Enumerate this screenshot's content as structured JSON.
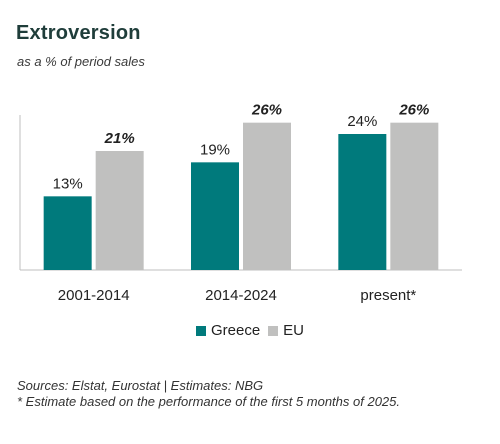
{
  "header": {
    "title": "Extroversion",
    "subtitle": "as a % of period sales"
  },
  "chart_data": {
    "type": "bar",
    "categories": [
      "2001-2014",
      "2014-2024",
      "present*"
    ],
    "series": [
      {
        "name": "Greece",
        "values": [
          13,
          19,
          24
        ],
        "labels": [
          "13%",
          "19%",
          "24%"
        ],
        "color": "#007a7c",
        "label_style": "normal"
      },
      {
        "name": "EU",
        "values": [
          21,
          26,
          26
        ],
        "labels": [
          "21%",
          "26%",
          "26%"
        ],
        "color": "#c0c0bf",
        "label_style": "italic-bold"
      }
    ],
    "ylim": [
      0,
      30
    ],
    "grid": false,
    "legend": "bottom-center",
    "axis_color": "#bfbfbf"
  },
  "notes": {
    "sources": "Sources: Elstat, Eurostat | Estimates: NBG",
    "footnote": "* Estimate based on the performance of the first 5 months of 2025."
  }
}
